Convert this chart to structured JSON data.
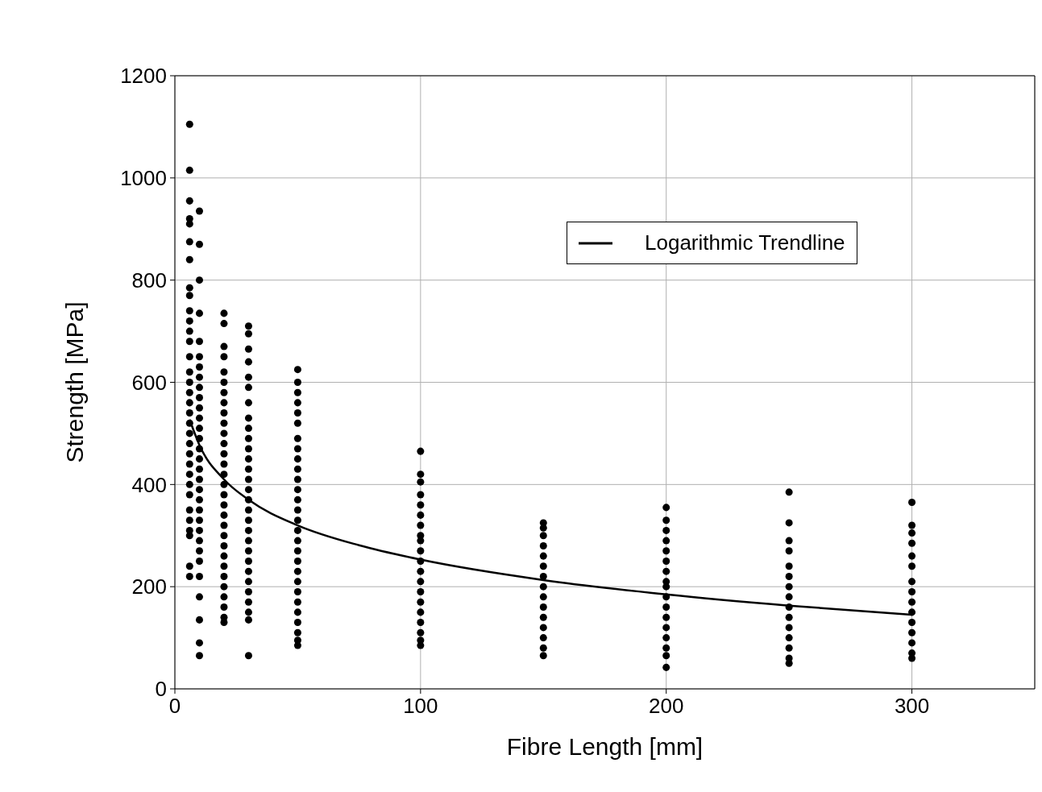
{
  "chart_data": {
    "type": "scatter",
    "xlabel": "Fibre Length [mm]",
    "ylabel": "Strength [MPa]",
    "xlim": [
      0,
      350
    ],
    "xticks": [
      0,
      100,
      200,
      300
    ],
    "ylim": [
      0,
      1200
    ],
    "yticks": [
      0,
      200,
      400,
      600,
      800,
      1000,
      1200
    ],
    "grid": true,
    "legend": "top right",
    "marker": "circle",
    "series": [
      {
        "color": "#000000",
        "x": [
          6,
          6,
          6,
          6,
          6,
          6,
          6,
          6,
          6,
          6,
          6,
          6,
          6,
          6,
          6,
          6,
          6,
          6,
          6,
          6,
          6,
          6,
          6,
          6,
          6,
          6,
          6,
          6,
          6,
          6,
          6,
          6,
          6,
          10,
          10,
          10,
          10,
          10,
          10,
          10,
          10,
          10,
          10,
          10,
          10,
          10,
          10,
          10,
          10,
          10,
          10,
          10,
          10,
          10,
          10,
          10,
          10,
          10,
          10,
          10,
          10,
          10,
          10,
          10,
          20,
          20,
          20,
          20,
          20,
          20,
          20,
          20,
          20,
          20,
          20,
          20,
          20,
          20,
          20,
          20,
          20,
          20,
          20,
          20,
          20,
          20,
          20,
          20,
          20,
          20,
          20,
          20,
          20,
          20,
          30,
          30,
          30,
          30,
          30,
          30,
          30,
          30,
          30,
          30,
          30,
          30,
          30,
          30,
          30,
          30,
          30,
          30,
          30,
          30,
          30,
          30,
          30,
          30,
          30,
          30,
          30,
          30,
          30,
          50,
          50,
          50,
          50,
          50,
          50,
          50,
          50,
          50,
          50,
          50,
          50,
          50,
          50,
          50,
          50,
          50,
          50,
          50,
          50,
          50,
          50,
          50,
          50,
          50,
          50,
          50,
          50,
          100,
          100,
          100,
          100,
          100,
          100,
          100,
          100,
          100,
          100,
          100,
          100,
          100,
          100,
          100,
          100,
          100,
          100,
          100,
          100,
          150,
          150,
          150,
          150,
          150,
          150,
          150,
          150,
          150,
          150,
          150,
          150,
          150,
          150,
          150,
          200,
          200,
          200,
          200,
          200,
          200,
          200,
          200,
          200,
          200,
          200,
          200,
          200,
          200,
          200,
          200,
          200,
          250,
          250,
          250,
          250,
          250,
          250,
          250,
          250,
          250,
          250,
          250,
          250,
          250,
          250,
          250,
          300,
          300,
          300,
          300,
          300,
          300,
          300,
          300,
          300,
          300,
          300,
          300,
          300,
          300,
          300
        ],
        "values": [
          1105,
          1015,
          955,
          920,
          910,
          875,
          840,
          785,
          770,
          740,
          720,
          700,
          680,
          650,
          620,
          600,
          580,
          560,
          540,
          520,
          500,
          480,
          460,
          440,
          420,
          400,
          380,
          350,
          330,
          310,
          300,
          240,
          220,
          935,
          870,
          800,
          735,
          680,
          650,
          630,
          610,
          590,
          570,
          550,
          530,
          510,
          490,
          470,
          450,
          430,
          410,
          390,
          370,
          350,
          330,
          310,
          290,
          270,
          250,
          220,
          180,
          135,
          90,
          65,
          735,
          715,
          670,
          650,
          620,
          600,
          580,
          560,
          540,
          520,
          500,
          480,
          460,
          440,
          420,
          400,
          380,
          360,
          340,
          320,
          300,
          280,
          260,
          240,
          220,
          200,
          180,
          160,
          140,
          130,
          710,
          695,
          665,
          640,
          610,
          590,
          560,
          530,
          510,
          490,
          470,
          450,
          430,
          410,
          390,
          370,
          350,
          330,
          310,
          290,
          270,
          250,
          230,
          210,
          190,
          170,
          150,
          135,
          65,
          625,
          600,
          580,
          560,
          540,
          520,
          490,
          470,
          450,
          430,
          410,
          390,
          370,
          350,
          330,
          310,
          290,
          270,
          250,
          230,
          210,
          190,
          170,
          150,
          130,
          110,
          95,
          85,
          465,
          420,
          405,
          380,
          360,
          340,
          320,
          300,
          290,
          270,
          250,
          230,
          210,
          190,
          170,
          150,
          130,
          110,
          95,
          85,
          325,
          315,
          300,
          280,
          260,
          240,
          220,
          200,
          180,
          160,
          140,
          120,
          100,
          80,
          65,
          355,
          330,
          310,
          290,
          270,
          250,
          230,
          210,
          200,
          180,
          160,
          140,
          120,
          100,
          80,
          65,
          42,
          385,
          325,
          290,
          270,
          240,
          220,
          200,
          180,
          160,
          140,
          120,
          100,
          80,
          60,
          50,
          365,
          320,
          305,
          285,
          260,
          240,
          210,
          190,
          170,
          150,
          130,
          110,
          90,
          70,
          60
        ]
      },
      {
        "type": "line",
        "name": "Logarithmic Trendline",
        "color": "#000000",
        "marker": "none",
        "x": [
          6,
          10,
          20,
          30,
          50,
          75,
          100,
          150,
          200,
          250,
          300
        ],
        "values": [
          527,
          477,
          410,
          370,
          320,
          281,
          253,
          213,
          185,
          163,
          145
        ]
      }
    ]
  }
}
